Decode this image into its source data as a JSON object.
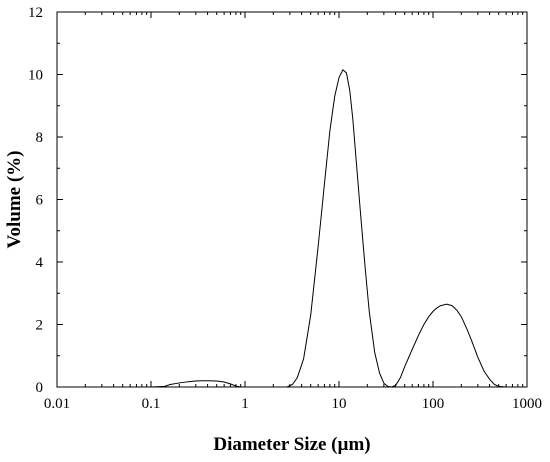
{
  "chart_data": {
    "type": "line",
    "title": "",
    "xlabel": "Diameter Size (µm)",
    "ylabel": "Volume (%)",
    "x_scale": "log",
    "xlim": [
      0.01,
      1000
    ],
    "ylim": [
      0,
      12
    ],
    "grid": false,
    "line_color": "#000000",
    "x_ticks": [
      {
        "value": 0.01,
        "label": "0.01"
      },
      {
        "value": 0.1,
        "label": "0.1"
      },
      {
        "value": 1,
        "label": "1"
      },
      {
        "value": 10,
        "label": "10"
      },
      {
        "value": 100,
        "label": "100"
      },
      {
        "value": 1000,
        "label": "1000"
      }
    ],
    "y_ticks": [
      {
        "value": 0,
        "label": "0"
      },
      {
        "value": 2,
        "label": "2"
      },
      {
        "value": 4,
        "label": "4"
      },
      {
        "value": 6,
        "label": "6"
      },
      {
        "value": 8,
        "label": "8"
      },
      {
        "value": 10,
        "label": "10"
      },
      {
        "value": 12,
        "label": "12"
      }
    ],
    "series": [
      {
        "x": [
          0.01,
          0.05,
          0.1,
          0.14,
          0.16,
          0.2,
          0.25,
          0.3,
          0.35,
          0.4,
          0.5,
          0.6,
          0.7,
          0.8,
          0.9,
          1,
          2,
          2.8,
          3.2,
          3.6,
          4.2,
          5,
          6,
          7,
          8,
          9,
          10,
          11,
          12,
          13,
          14,
          15,
          17,
          19,
          21,
          24,
          27,
          30,
          33,
          36,
          40,
          45,
          50,
          60,
          70,
          80,
          90,
          100,
          110,
          120,
          140,
          160,
          180,
          200,
          230,
          260,
          300,
          350,
          400,
          450,
          500,
          600,
          800,
          1000
        ],
        "y": [
          0,
          0,
          0,
          0.02,
          0.08,
          0.13,
          0.17,
          0.19,
          0.2,
          0.2,
          0.19,
          0.16,
          0.1,
          0.03,
          0,
          0,
          0,
          0,
          0.08,
          0.3,
          0.9,
          2.3,
          4.5,
          6.5,
          8.2,
          9.3,
          9.9,
          10.15,
          10.05,
          9.5,
          8.6,
          7.5,
          5.5,
          3.8,
          2.4,
          1.1,
          0.45,
          0.12,
          0.02,
          0,
          0.05,
          0.3,
          0.65,
          1.2,
          1.65,
          2.0,
          2.25,
          2.42,
          2.53,
          2.6,
          2.65,
          2.6,
          2.45,
          2.25,
          1.85,
          1.45,
          0.95,
          0.5,
          0.25,
          0.08,
          0.02,
          0,
          0,
          0
        ]
      }
    ]
  }
}
